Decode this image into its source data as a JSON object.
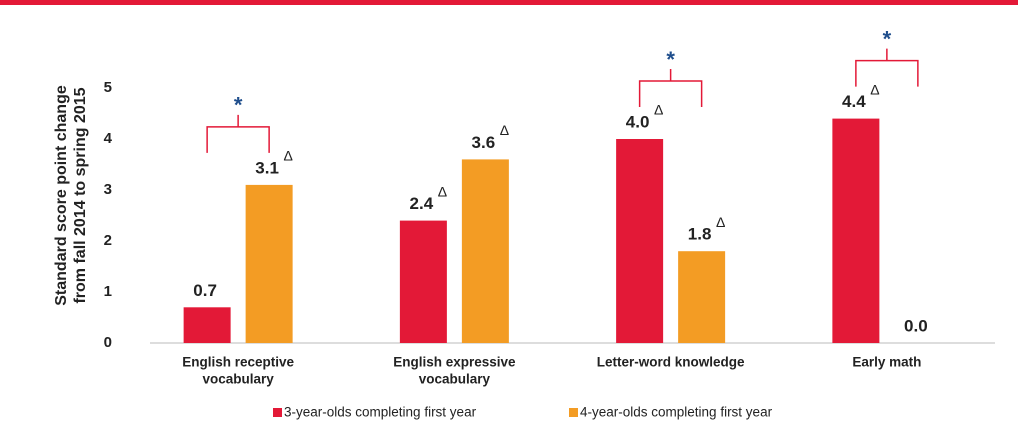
{
  "chart_data": {
    "type": "bar",
    "ylabel": [
      "Standard score point change",
      "from fall 2014 to spring 2015"
    ],
    "categories": [
      [
        "English receptive",
        "vocabulary"
      ],
      [
        "English expressive",
        "vocabulary"
      ],
      [
        "Letter-word knowledge"
      ],
      [
        "Early math"
      ]
    ],
    "series": [
      {
        "name": "3-year-olds completing first year",
        "color": "#e31937",
        "values": [
          0.7,
          2.4,
          4.0,
          4.4
        ],
        "value_labels": [
          "0.7",
          "2.4",
          "4.0",
          "4.4"
        ],
        "delta": [
          false,
          true,
          true,
          true
        ]
      },
      {
        "name": "4-year-olds completing first year",
        "color": "#f39c24",
        "values": [
          3.1,
          3.6,
          1.8,
          0.0
        ],
        "value_labels": [
          "3.1",
          "3.6",
          "1.8",
          "0.0"
        ],
        "delta": [
          true,
          true,
          true,
          false
        ]
      }
    ],
    "delta_marker": "Δ",
    "significance_marker": "*",
    "significant": [
      true,
      false,
      true,
      true
    ],
    "ylim": [
      0,
      5
    ],
    "yticks": [
      0,
      1,
      2,
      3,
      4,
      5
    ],
    "grid": false,
    "legend": "bottom"
  }
}
